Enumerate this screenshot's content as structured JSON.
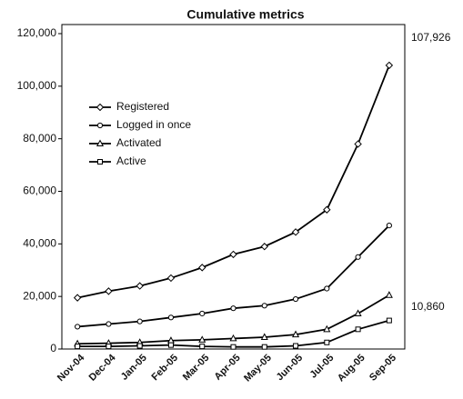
{
  "chart_data": {
    "type": "line",
    "title": "Cumulative metrics",
    "categories": [
      "Nov-04",
      "Dec-04",
      "Jan-05",
      "Feb-05",
      "Mar-05",
      "Apr-05",
      "May-05",
      "Jun-05",
      "Jul-05",
      "Aug-05",
      "Sep-05"
    ],
    "series": [
      {
        "name": "Registered",
        "color": "#000000",
        "marker": "diamond",
        "values": [
          19500,
          22000,
          24000,
          27000,
          31000,
          36000,
          39000,
          44500,
          53000,
          78000,
          107926
        ]
      },
      {
        "name": "Logged in once",
        "color": "#000000",
        "marker": "circle",
        "values": [
          8500,
          9500,
          10500,
          12000,
          13500,
          15500,
          16500,
          19000,
          23000,
          35000,
          47000
        ]
      },
      {
        "name": "Activated",
        "color": "#000000",
        "marker": "triangle",
        "values": [
          2000,
          2200,
          2500,
          3200,
          3500,
          4000,
          4500,
          5500,
          7500,
          13500,
          20500
        ]
      },
      {
        "name": "Active",
        "color": "#000000",
        "marker": "square",
        "values": [
          1000,
          1000,
          1200,
          1500,
          1000,
          800,
          800,
          1200,
          2500,
          7500,
          10860
        ]
      }
    ],
    "annotations": [
      "107,926",
      "10,860"
    ],
    "ylim": [
      0,
      120000
    ],
    "yticks": [
      {
        "value": 0,
        "label": "0"
      },
      {
        "value": 20000,
        "label": "20,000"
      },
      {
        "value": 40000,
        "label": "40,000"
      },
      {
        "value": 60000,
        "label": "60,000"
      },
      {
        "value": 80000,
        "label": "80,000"
      },
      {
        "value": 100000,
        "label": "100,000"
      },
      {
        "value": 120000,
        "label": "120,000"
      }
    ],
    "legend": "upper-left"
  }
}
